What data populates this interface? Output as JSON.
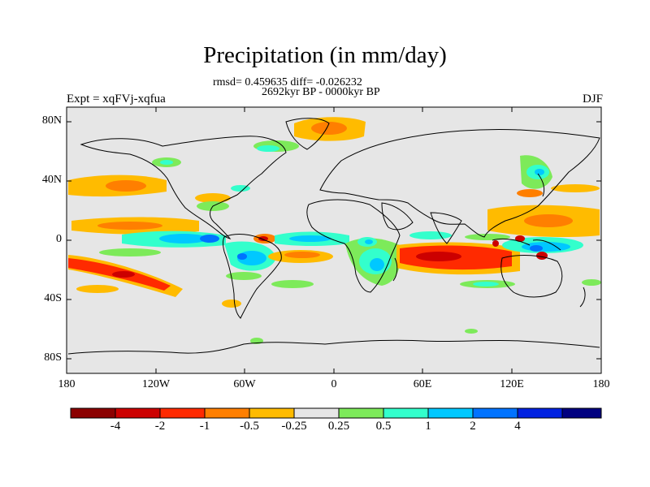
{
  "title": "Precipitation (in mm/day)",
  "stats_line": "rmsd= 0.459635 diff= -0.026232",
  "period": "2692kyr BP - 0000kyr BP",
  "experiment": "Expt = xqFVj-xqfua",
  "season": "DJF",
  "axes": {
    "y_ticks": [
      "80N",
      "40N",
      "0",
      "40S",
      "80S"
    ],
    "x_ticks": [
      "180",
      "120W",
      "60W",
      "0",
      "60E",
      "120E",
      "180"
    ]
  },
  "colorbar": {
    "colors": [
      "#8b0000",
      "#cc0000",
      "#ff2a00",
      "#ff7f00",
      "#ffbb00",
      "#e6e6e6",
      "#7dea5a",
      "#33ffcc",
      "#00c8ff",
      "#0073ff",
      "#0021e0",
      "#000080"
    ],
    "labels": [
      "-4",
      "-2",
      "-1",
      "-0.5",
      "-0.25",
      "0.25",
      "0.5",
      "1",
      "2",
      "4"
    ]
  },
  "map": {
    "background": "#e6e6e6",
    "coastline": "#000000"
  }
}
